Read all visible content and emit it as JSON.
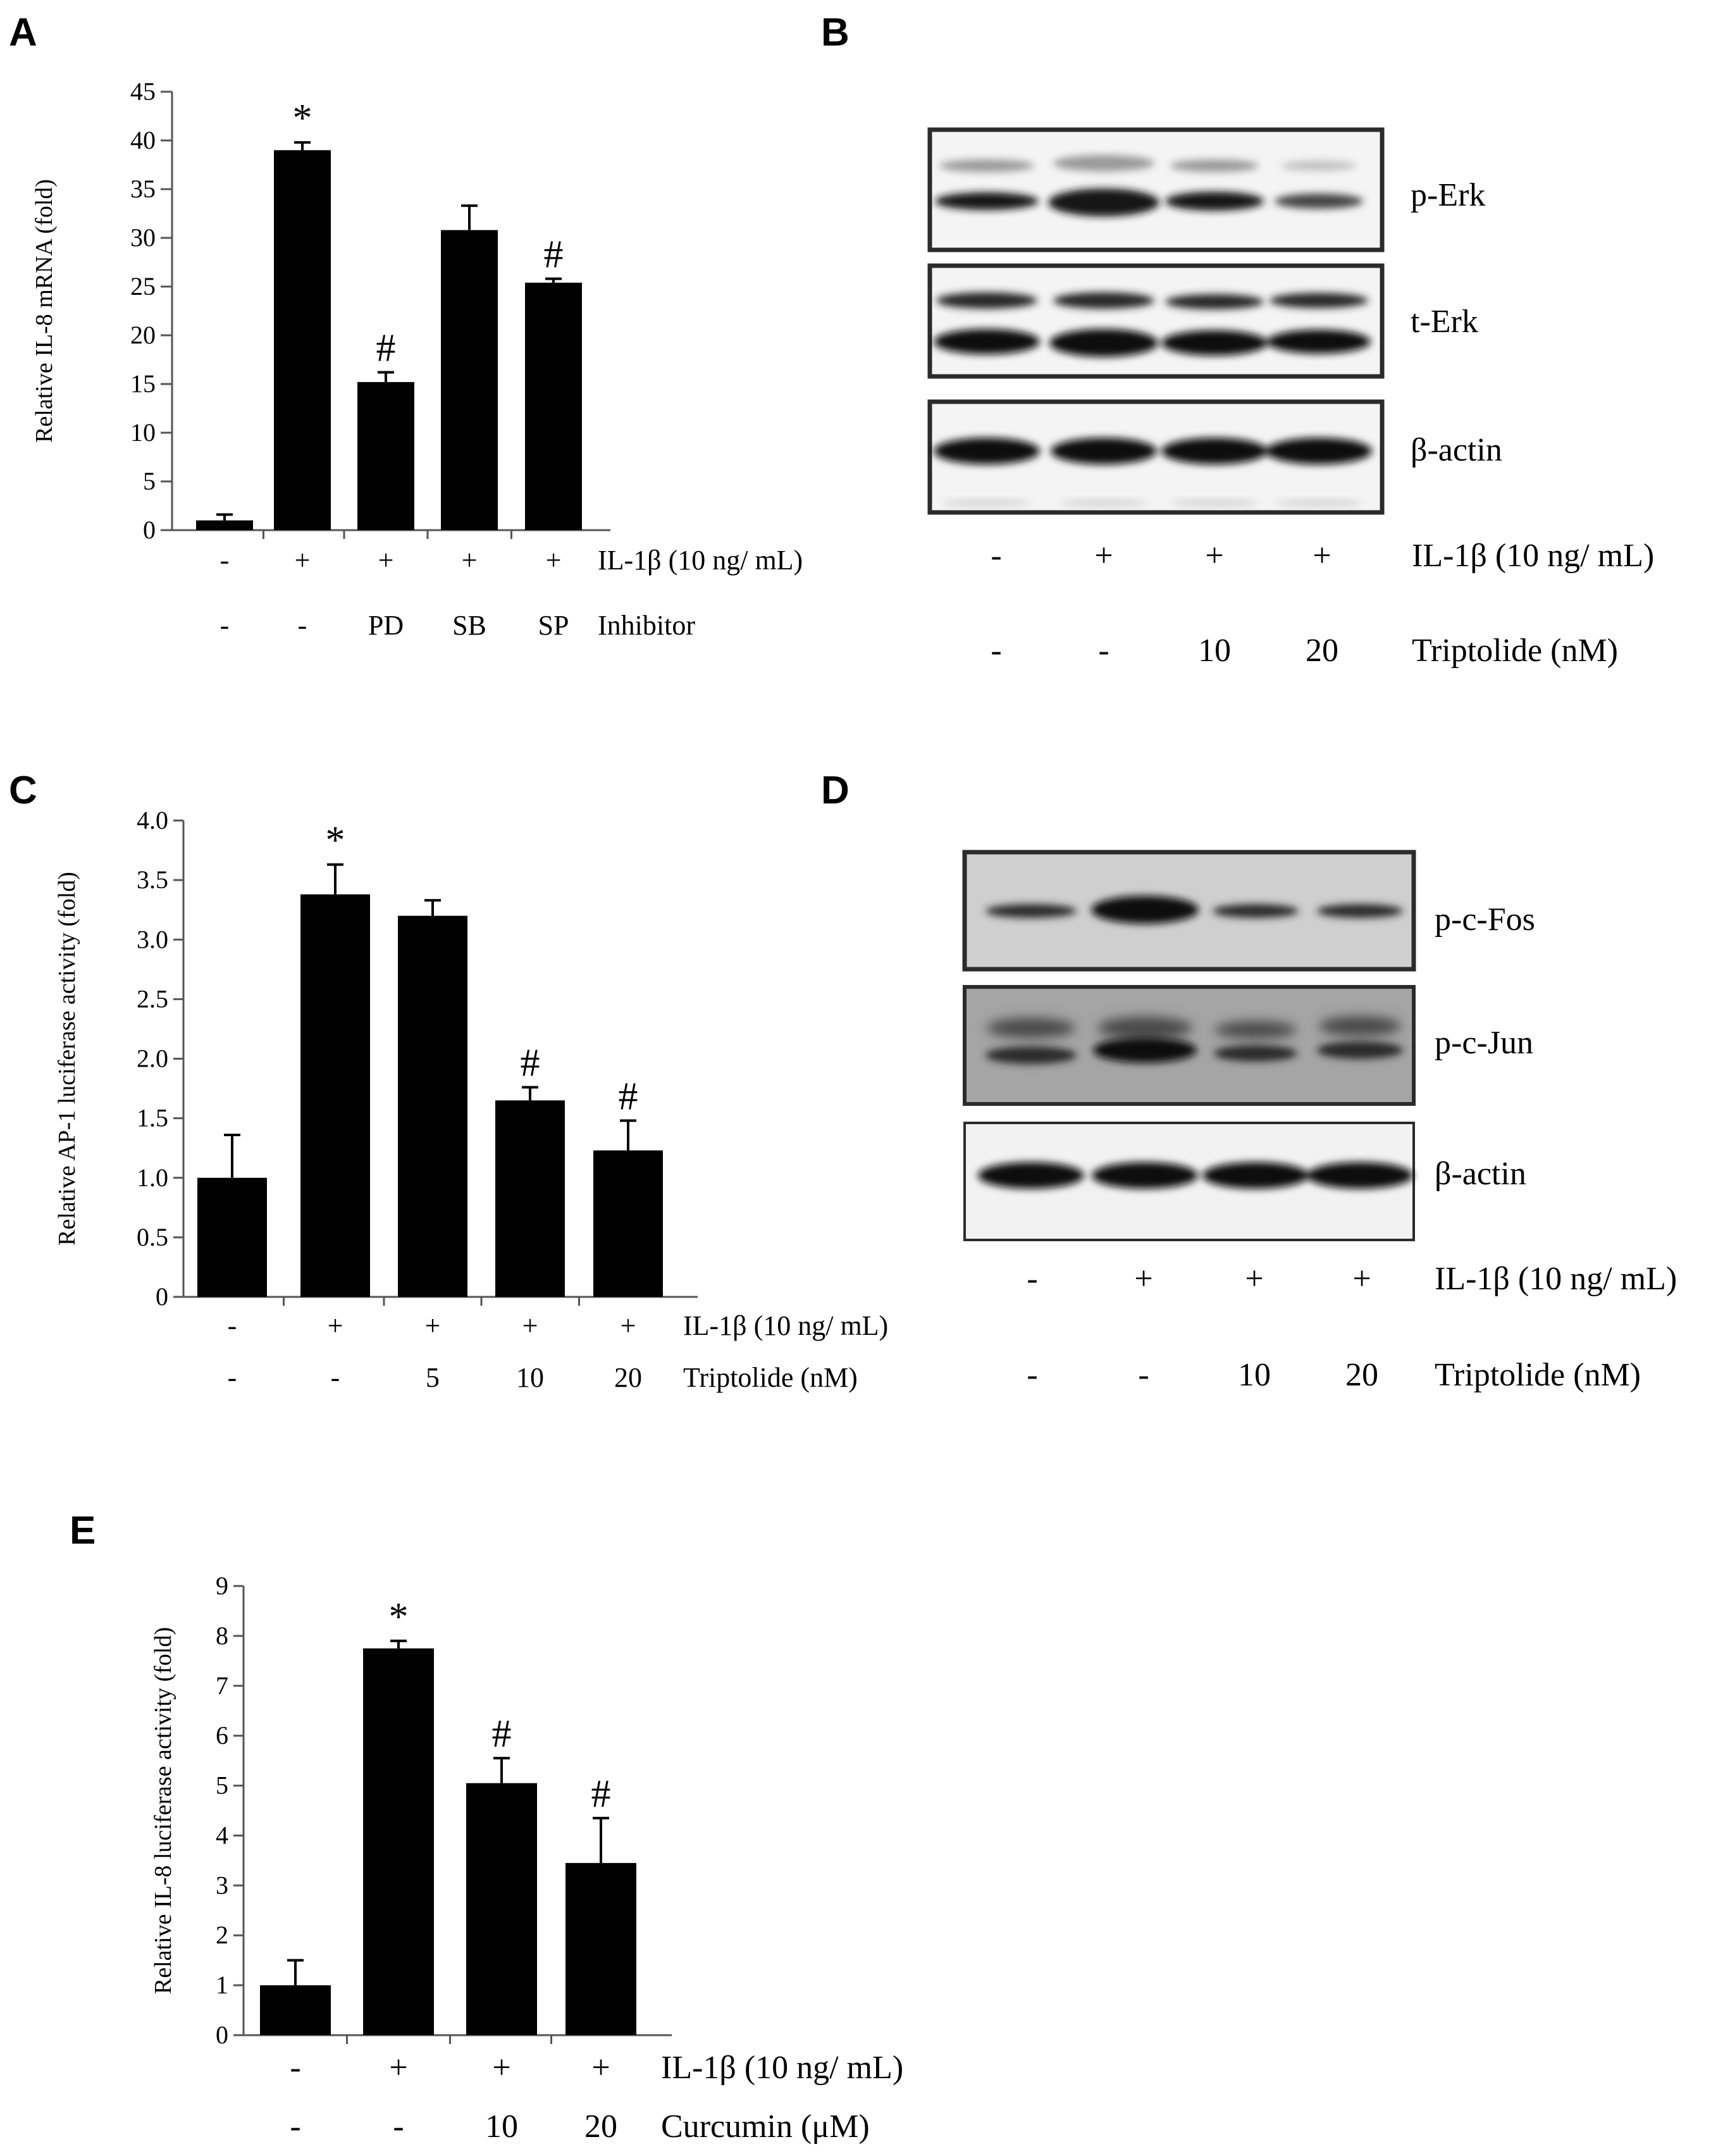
{
  "panels": {
    "a": "A",
    "b": "B",
    "c": "C",
    "d": "D",
    "e": "E"
  },
  "chart_data": [
    {
      "panel": "A",
      "type": "bar",
      "ylabel": "Relative IL-8 mRNA (fold)",
      "ylim": [
        0,
        45
      ],
      "yticks": [
        "0",
        "5",
        "10",
        "15",
        "20",
        "25",
        "30",
        "35",
        "40",
        "45"
      ],
      "values": [
        1.0,
        39.0,
        15.2,
        30.8,
        25.4
      ],
      "errors": [
        0.6,
        0.8,
        1.0,
        2.5,
        0.4
      ],
      "significance": [
        "",
        "*",
        "#",
        "",
        "#"
      ],
      "rows": [
        {
          "label": "IL-1β (10 ng/ mL)",
          "values": [
            "-",
            "+",
            "+",
            "+",
            "+"
          ]
        },
        {
          "label": "Inhibitor",
          "values": [
            "-",
            "-",
            "PD",
            "SB",
            "SP"
          ]
        }
      ]
    },
    {
      "panel": "C",
      "type": "bar",
      "ylabel": "Relative AP-1 luciferase activity (fold)",
      "ylim": [
        0,
        4.0
      ],
      "yticks": [
        "0",
        "0.5",
        "1.0",
        "1.5",
        "2.0",
        "2.5",
        "3.0",
        "3.5",
        "4.0"
      ],
      "values": [
        1.0,
        3.38,
        3.2,
        1.65,
        1.23
      ],
      "errors": [
        0.36,
        0.25,
        0.13,
        0.11,
        0.25
      ],
      "significance": [
        "",
        "*",
        "",
        "#",
        "#"
      ],
      "rows": [
        {
          "label": "IL-1β (10 ng/ mL)",
          "values": [
            "-",
            "+",
            "+",
            "+",
            "+"
          ]
        },
        {
          "label": "Triptolide (nM)",
          "values": [
            "-",
            "-",
            "5",
            "10",
            "20"
          ]
        }
      ]
    },
    {
      "panel": "E",
      "type": "bar",
      "ylabel": "Relative IL-8 luciferase activity (fold)",
      "ylim": [
        0,
        9
      ],
      "yticks": [
        "0",
        "1",
        "2",
        "3",
        "4",
        "5",
        "6",
        "7",
        "8",
        "9"
      ],
      "values": [
        1.0,
        7.75,
        5.05,
        3.45
      ],
      "errors": [
        0.5,
        0.15,
        0.5,
        0.9
      ],
      "significance": [
        "",
        "*",
        "#",
        "#"
      ],
      "rows": [
        {
          "label": "IL-1β (10 ng/ mL)",
          "values": [
            "-",
            "+",
            "+",
            "+"
          ]
        },
        {
          "label": "Curcumin (μM)",
          "values": [
            "-",
            "-",
            "10",
            "20"
          ]
        }
      ]
    }
  ],
  "blots": [
    {
      "panel": "B",
      "bands": [
        "p-Erk",
        "t-Erk",
        "β-actin"
      ],
      "rows": [
        {
          "label": "IL-1β (10 ng/ mL)",
          "values": [
            "-",
            "+",
            "+",
            "+"
          ]
        },
        {
          "label": "Triptolide (nM)",
          "values": [
            "-",
            "-",
            "10",
            "20"
          ]
        }
      ]
    },
    {
      "panel": "D",
      "bands": [
        "p-c-Fos",
        "p-c-Jun",
        "β-actin"
      ],
      "rows": [
        {
          "label": "IL-1β (10 ng/ mL)",
          "values": [
            "-",
            "+",
            "+",
            "+"
          ]
        },
        {
          "label": "Triptolide (nM)",
          "values": [
            "-",
            "-",
            "10",
            "20"
          ]
        }
      ]
    }
  ]
}
